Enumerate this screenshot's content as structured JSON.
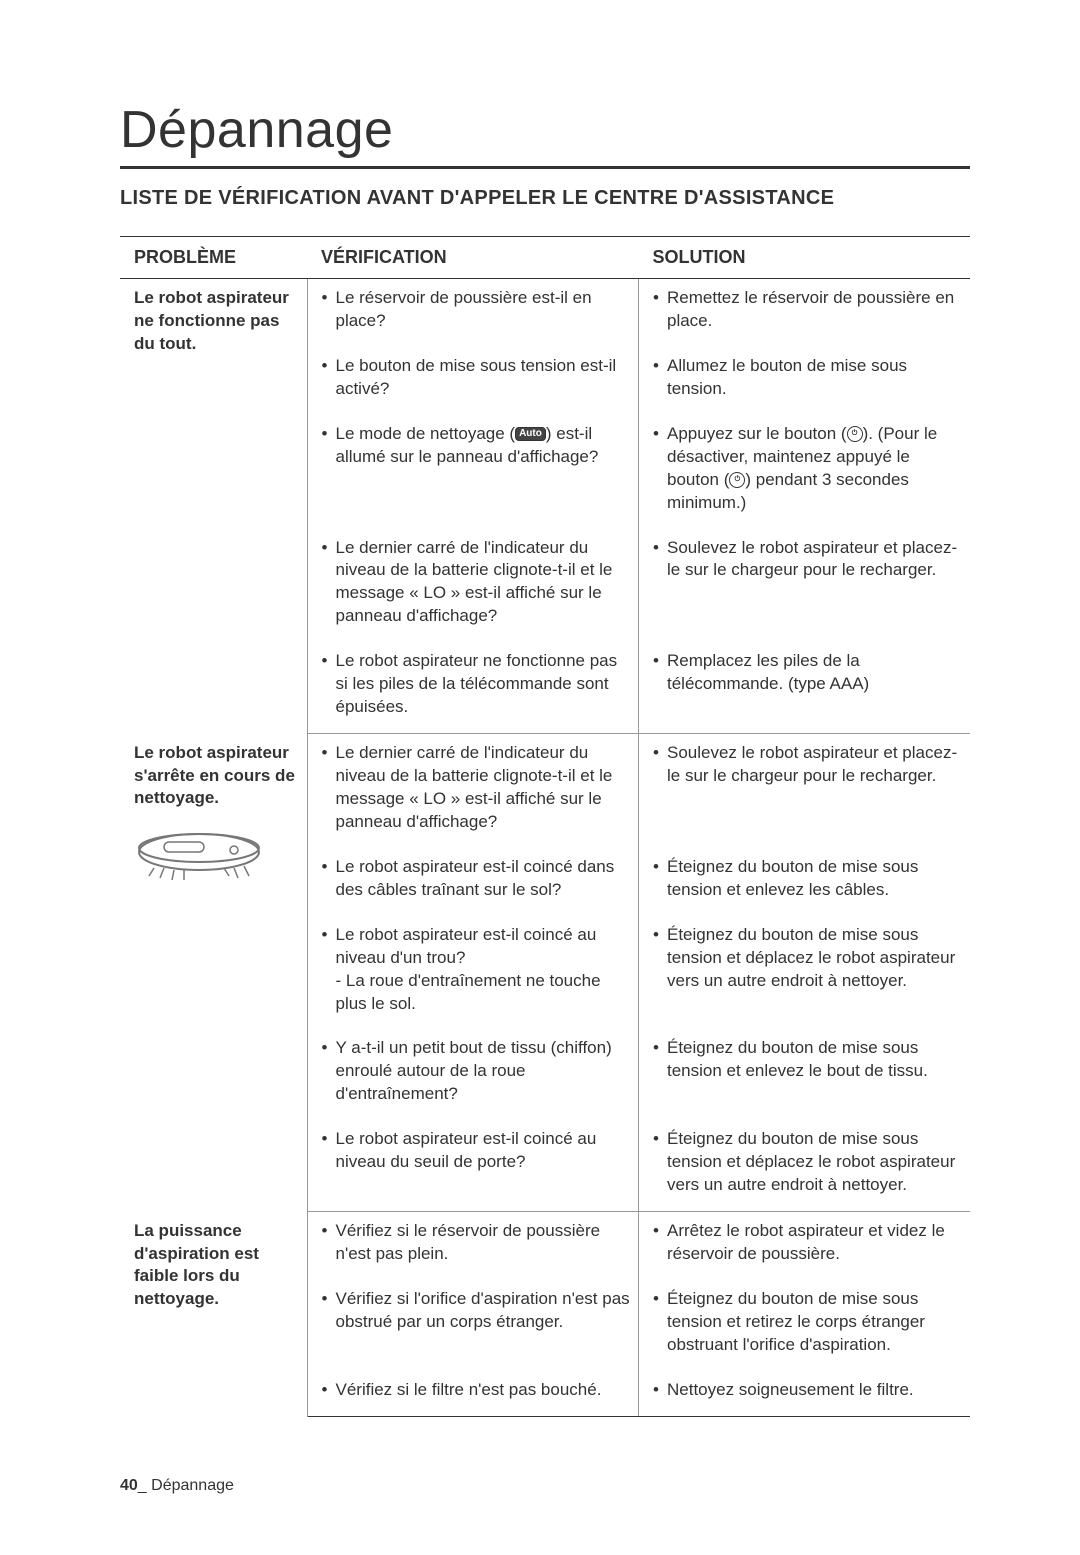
{
  "page": {
    "title": "Dépannage",
    "subtitle": "LISTE DE VÉRIFICATION AVANT D'APPELER LE CENTRE D'ASSISTANCE",
    "footer_page": "40",
    "footer_label": "_ Dépannage"
  },
  "headers": {
    "problem": "PROBLÈME",
    "verification": "VÉRIFICATION",
    "solution": "SOLUTION"
  },
  "rows": [
    {
      "problem": "Le robot aspirateur ne fonctionne pas du tout.",
      "verification": "Le réservoir de poussière est-il en place?",
      "solution": "Remettez le réservoir de poussière en place."
    },
    {
      "problem": "",
      "verification": "Le bouton de mise sous tension est-il activé?",
      "solution": "Allumez le bouton de mise sous tension."
    },
    {
      "problem": "",
      "verification_pre": "Le mode de nettoyage (",
      "verification_icon": "Auto",
      "verification_post": ") est-il allumé sur le panneau d'affichage?",
      "solution_pre": "Appuyez sur le bouton (",
      "solution_post": "). (Pour le désactiver, maintenez appuyé le bouton (",
      "solution_post2": ") pendant 3 secondes minimum.)"
    },
    {
      "problem": "",
      "verification": "Le dernier carré de l'indicateur du niveau de la batterie clignote-t-il et le message « LO » est-il affiché sur le panneau d'affichage?",
      "solution": "Soulevez le robot aspirateur et placez-le sur le chargeur pour le recharger."
    },
    {
      "problem": "",
      "verification": "Le robot aspirateur ne fonctionne pas si les piles de la télécommande sont épuisées.",
      "solution": "Remplacez les piles de la télécommande. (type AAA)",
      "section_end": true
    },
    {
      "problem": "Le robot aspirateur s'arrête en cours de nettoyage.",
      "has_robot_img": true,
      "verification": "Le dernier carré de l'indicateur du niveau de la batterie clignote-t-il et le message « LO » est-il affiché sur le panneau d'affichage?",
      "solution": "Soulevez le robot aspirateur et placez-le sur le chargeur pour le recharger."
    },
    {
      "problem": "",
      "verification": "Le robot aspirateur est-il coincé dans des câbles traînant sur le sol?",
      "solution": "Éteignez du bouton de mise sous tension et enlevez les câbles."
    },
    {
      "problem": "",
      "verification": "Le robot aspirateur est-il coincé au niveau d'un trou?\n- La roue d'entraînement ne touche plus le sol.",
      "solution": "Éteignez du bouton de mise sous tension et déplacez le robot aspirateur vers un autre endroit à nettoyer."
    },
    {
      "problem": "",
      "verification": "Y a-t-il un petit bout de tissu (chiffon) enroulé autour de la roue d'entraînement?",
      "solution": "Éteignez du bouton de mise sous tension et enlevez le bout de tissu."
    },
    {
      "problem": "",
      "verification": "Le robot aspirateur est-il coincé au niveau du seuil de porte?",
      "solution": "Éteignez du bouton de mise sous tension et déplacez le robot aspirateur vers un autre endroit à nettoyer.",
      "section_end": true
    },
    {
      "problem": "La puissance d'aspiration est faible lors du nettoyage.",
      "verification": "Vérifiez si le réservoir de poussière n'est pas plein.",
      "solution": "Arrêtez le robot aspirateur et videz le réservoir de poussière."
    },
    {
      "problem": "",
      "verification": "Vérifiez si l'orifice d'aspiration n'est pas obstrué par un corps étranger.",
      "solution": "Éteignez du bouton de mise sous tension et retirez le corps étranger obstruant l'orifice d'aspiration."
    },
    {
      "problem": "",
      "verification": "Vérifiez si le filtre n'est pas bouché.",
      "solution": "Nettoyez soigneusement le filtre.",
      "last": true
    }
  ]
}
